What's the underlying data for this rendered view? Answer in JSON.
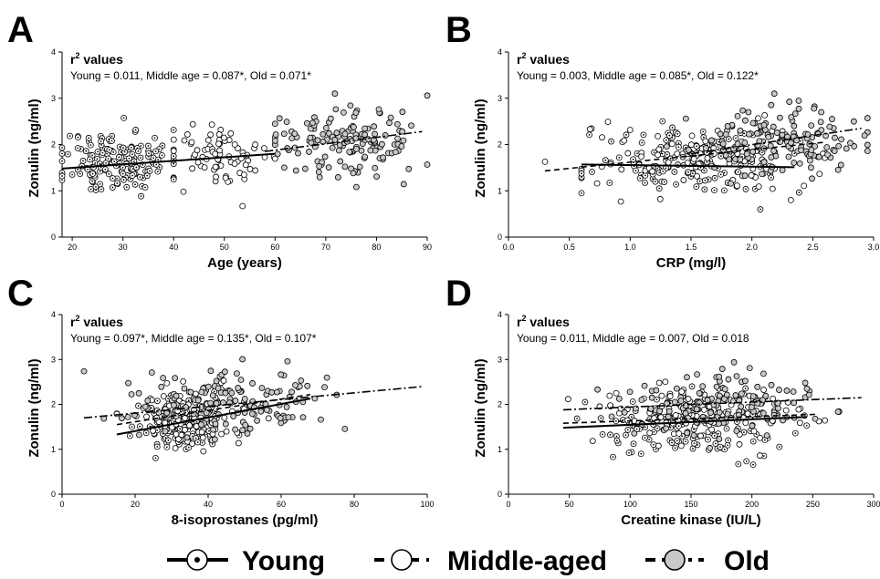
{
  "legend": {
    "items": [
      {
        "key": "young",
        "label": "Young",
        "line": "solid",
        "marker": "dot-circle"
      },
      {
        "key": "middle",
        "label": "Middle-aged",
        "line": "dashed",
        "marker": "open-circle"
      },
      {
        "key": "old",
        "label": "Old",
        "line": "dash-dot",
        "marker": "gray-circle"
      }
    ]
  },
  "colors": {
    "young_marker_fill": "#ffffff",
    "middle_marker_fill": "#ffffff",
    "old_marker_fill": "#c8c8c8",
    "stroke": "#000000"
  },
  "chart_data": [
    {
      "panel": "A",
      "type": "scatter",
      "xlabel": "Age (years)",
      "ylabel": "Zonulin (ng/ml)",
      "xlim": [
        18,
        90
      ],
      "ylim": [
        0,
        4
      ],
      "xticks": [
        20,
        30,
        40,
        50,
        60,
        70,
        80,
        90
      ],
      "yticks": [
        0,
        1,
        2,
        3,
        4
      ],
      "r2_title": "r",
      "r2_sup": "2",
      "r2_title_rest": " values",
      "r2_text": "Young = 0.011, Middle age = 0.087*, Old = 0.071*",
      "groups": [
        {
          "key": "young",
          "x_range": [
            18,
            40
          ],
          "center": [
            29,
            1.62
          ],
          "sd": [
            5.5,
            0.35
          ],
          "n": 170,
          "seed": 11
        },
        {
          "key": "middle",
          "x_range": [
            40,
            60
          ],
          "center": [
            50,
            1.75
          ],
          "sd": [
            5.5,
            0.35
          ],
          "n": 75,
          "seed": 12
        },
        {
          "key": "old",
          "x_range": [
            60,
            90
          ],
          "center": [
            74,
            2.05
          ],
          "sd": [
            7.5,
            0.38
          ],
          "n": 150,
          "seed": 13
        }
      ],
      "trendlines": [
        {
          "key": "young",
          "x": [
            18,
            60
          ],
          "y": [
            1.48,
            1.8
          ]
        },
        {
          "key": "old",
          "x": [
            58,
            89
          ],
          "y": [
            1.85,
            2.28
          ]
        }
      ]
    },
    {
      "panel": "B",
      "type": "scatter",
      "xlabel": "CRP (mg/l)",
      "ylabel": "Zonulin (ng/ml)",
      "xlim": [
        0,
        3.0
      ],
      "ylim": [
        0,
        4
      ],
      "xticks": [
        0.0,
        0.5,
        1.0,
        1.5,
        2.0,
        2.5,
        3.0
      ],
      "yticks": [
        0,
        1,
        2,
        3,
        4
      ],
      "r2_title": "r",
      "r2_sup": "2",
      "r2_title_rest": " values",
      "r2_text": "Young = 0.003, Middle age = 0.085*, Old = 0.122*",
      "groups": [
        {
          "key": "young",
          "x_range": [
            0.6,
            2.4
          ],
          "center": [
            1.5,
            1.6
          ],
          "sd": [
            0.4,
            0.35
          ],
          "n": 160,
          "seed": 21
        },
        {
          "key": "middle",
          "x_range": [
            0.3,
            2.6
          ],
          "center": [
            1.6,
            1.75
          ],
          "sd": [
            0.45,
            0.35
          ],
          "n": 90,
          "seed": 22
        },
        {
          "key": "old",
          "x_range": [
            1.3,
            2.95
          ],
          "center": [
            2.2,
            2.05
          ],
          "sd": [
            0.35,
            0.35
          ],
          "n": 150,
          "seed": 23
        }
      ],
      "trendlines": [
        {
          "key": "young",
          "x": [
            0.6,
            2.35
          ],
          "y": [
            1.57,
            1.51
          ]
        },
        {
          "key": "middle",
          "x": [
            0.3,
            2.6
          ],
          "y": [
            1.43,
            2.05
          ]
        },
        {
          "key": "old",
          "x": [
            1.5,
            2.9
          ],
          "y": [
            1.8,
            2.35
          ]
        }
      ]
    },
    {
      "panel": "C",
      "type": "scatter",
      "xlabel": "8-isoprostanes (pg/ml)",
      "ylabel": "Zonulin (ng/ml)",
      "xlim": [
        0,
        100
      ],
      "ylim": [
        0,
        4
      ],
      "xticks": [
        0,
        20,
        40,
        60,
        80,
        100
      ],
      "yticks": [
        0,
        1,
        2,
        3,
        4
      ],
      "r2_title": "r",
      "r2_sup": "2",
      "r2_title_rest": " values",
      "r2_text": "Young = 0.097*, Middle age = 0.135*, Old = 0.107*",
      "groups": [
        {
          "key": "young",
          "x_range": [
            15,
            50
          ],
          "center": [
            32,
            1.55
          ],
          "sd": [
            6,
            0.3
          ],
          "n": 150,
          "seed": 31
        },
        {
          "key": "middle",
          "x_range": [
            15,
            65
          ],
          "center": [
            35,
            1.8
          ],
          "sd": [
            8,
            0.35
          ],
          "n": 110,
          "seed": 32
        },
        {
          "key": "old",
          "x_range": [
            6,
            99
          ],
          "center": [
            45,
            2.05
          ],
          "sd": [
            14,
            0.35
          ],
          "n": 140,
          "seed": 33
        }
      ],
      "trendlines": [
        {
          "key": "young",
          "x": [
            15,
            68
          ],
          "y": [
            1.33,
            2.13
          ]
        },
        {
          "key": "middle",
          "x": [
            15,
            68
          ],
          "y": [
            1.55,
            2.22
          ]
        },
        {
          "key": "old",
          "x": [
            6,
            99
          ],
          "y": [
            1.7,
            2.4
          ]
        }
      ]
    },
    {
      "panel": "D",
      "type": "scatter",
      "xlabel": "Creatine kinase (IU/L)",
      "ylabel": "Zonulin (ng/ml)",
      "xlim": [
        0,
        300
      ],
      "ylim": [
        0,
        4
      ],
      "xticks": [
        0,
        50,
        100,
        150,
        200,
        250,
        300
      ],
      "yticks": [
        0,
        1,
        2,
        3,
        4
      ],
      "r2_title": "r",
      "r2_sup": "2",
      "r2_title_rest": " values",
      "r2_text": "Young = 0.011, Middle age = 0.007, Old = 0.018",
      "groups": [
        {
          "key": "young",
          "x_range": [
            45,
            245
          ],
          "center": [
            150,
            1.55
          ],
          "sd": [
            40,
            0.35
          ],
          "n": 160,
          "seed": 41
        },
        {
          "key": "middle",
          "x_range": [
            45,
            260
          ],
          "center": [
            155,
            1.8
          ],
          "sd": [
            45,
            0.35
          ],
          "n": 110,
          "seed": 42
        },
        {
          "key": "old",
          "x_range": [
            60,
            290
          ],
          "center": [
            175,
            2.05
          ],
          "sd": [
            45,
            0.38
          ],
          "n": 130,
          "seed": 43
        }
      ],
      "trendlines": [
        {
          "key": "young",
          "x": [
            45,
            245
          ],
          "y": [
            1.48,
            1.72
          ]
        },
        {
          "key": "middle",
          "x": [
            45,
            255
          ],
          "y": [
            1.58,
            1.78
          ]
        },
        {
          "key": "old",
          "x": [
            45,
            290
          ],
          "y": [
            1.88,
            2.15
          ]
        }
      ]
    }
  ]
}
